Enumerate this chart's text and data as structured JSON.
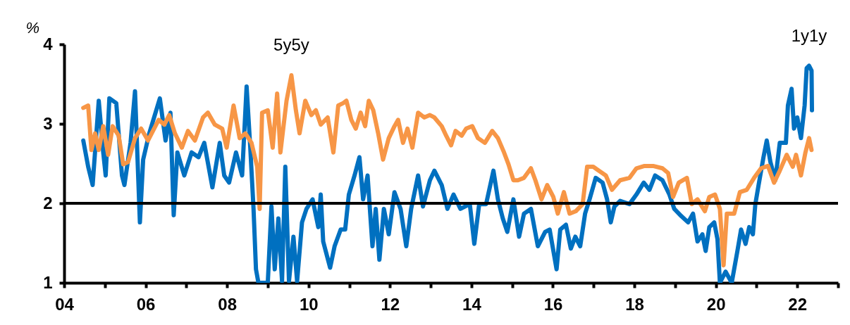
{
  "chart_data": {
    "type": "line",
    "ylabel": "%",
    "xlim": [
      2004,
      2023
    ],
    "ylim": [
      1,
      4
    ],
    "xticks": [
      {
        "value": 2004,
        "label": "04"
      },
      {
        "value": 2005,
        "label": null
      },
      {
        "value": 2006,
        "label": "06"
      },
      {
        "value": 2007,
        "label": null
      },
      {
        "value": 2008,
        "label": "08"
      },
      {
        "value": 2009,
        "label": null
      },
      {
        "value": 2010,
        "label": "10"
      },
      {
        "value": 2011,
        "label": null
      },
      {
        "value": 2012,
        "label": "12"
      },
      {
        "value": 2013,
        "label": null
      },
      {
        "value": 2014,
        "label": "14"
      },
      {
        "value": 2015,
        "label": null
      },
      {
        "value": 2016,
        "label": "16"
      },
      {
        "value": 2017,
        "label": null
      },
      {
        "value": 2018,
        "label": "18"
      },
      {
        "value": 2019,
        "label": null
      },
      {
        "value": 2020,
        "label": "20"
      },
      {
        "value": 2021,
        "label": null
      },
      {
        "value": 2022,
        "label": "22"
      },
      {
        "value": 2023,
        "label": null
      }
    ],
    "yticks": [
      1,
      2,
      3,
      4
    ],
    "grid": false,
    "line_style": "solid",
    "marker": "none",
    "ref_lines": [
      {
        "axis": "y",
        "value": 2,
        "color": "#000000",
        "line_style": "solid"
      }
    ],
    "series": [
      {
        "name": "1y1y",
        "color": "#0070c0",
        "x": [
          2004.47,
          2004.59,
          2004.7,
          2004.85,
          2004.96,
          2005.02,
          2005.11,
          2005.28,
          2005.42,
          2005.48,
          2005.63,
          2005.74,
          2005.86,
          2005.94,
          2006.09,
          2006.35,
          2006.49,
          2006.61,
          2006.69,
          2006.78,
          2006.95,
          2007.13,
          2007.3,
          2007.44,
          2007.64,
          2007.82,
          2007.93,
          2008.05,
          2008.22,
          2008.37,
          2008.48,
          2008.57,
          2008.65,
          2008.71,
          2008.77,
          2009,
          2009.09,
          2009.17,
          2009.26,
          2009.35,
          2009.43,
          2009.52,
          2009.63,
          2009.72,
          2009.84,
          2009.95,
          2010.1,
          2010.24,
          2010.3,
          2010.36,
          2010.53,
          2010.64,
          2010.79,
          2010.9,
          2010.99,
          2011.13,
          2011.25,
          2011.34,
          2011.45,
          2011.57,
          2011.65,
          2011.74,
          2011.85,
          2011.97,
          2012.11,
          2012.26,
          2012.4,
          2012.52,
          2012.69,
          2012.81,
          2012.98,
          2013.09,
          2013.27,
          2013.41,
          2013.56,
          2013.73,
          2013.96,
          2014.07,
          2014.19,
          2014.36,
          2014.54,
          2014.65,
          2014.77,
          2014.88,
          2015.03,
          2015.17,
          2015.29,
          2015.46,
          2015.63,
          2015.81,
          2015.92,
          2016.09,
          2016.18,
          2016.32,
          2016.44,
          2016.55,
          2016.67,
          2016.79,
          2016.9,
          2017.05,
          2017.22,
          2017.33,
          2017.42,
          2017.51,
          2017.65,
          2017.88,
          2018.05,
          2018.23,
          2018.37,
          2018.51,
          2018.69,
          2018.86,
          2018.98,
          2019.15,
          2019.32,
          2019.44,
          2019.55,
          2019.67,
          2019.75,
          2019.84,
          2019.96,
          2020.04,
          2020.1,
          2020.24,
          2020.39,
          2020.53,
          2020.62,
          2020.73,
          2020.82,
          2020.91,
          2020.97,
          2021.05,
          2021.17,
          2021.25,
          2021.34,
          2021.46,
          2021.57,
          2021.72,
          2021.77,
          2021.86,
          2021.92,
          2022,
          2022.09,
          2022.18,
          2022.23,
          2022.29,
          2022.35,
          2022.36
        ],
        "values": [
          2.79,
          2.46,
          2.23,
          3.29,
          2.64,
          2.35,
          3.32,
          3.26,
          2.35,
          2.23,
          2.76,
          3.41,
          1.76,
          2.55,
          2.88,
          3.32,
          2.79,
          3.14,
          1.85,
          2.64,
          2.35,
          2.64,
          2.58,
          2.76,
          2.2,
          2.76,
          2.35,
          2.26,
          2.64,
          2.35,
          3.47,
          2.7,
          1.93,
          1.17,
          1,
          1,
          1.96,
          1.17,
          1.81,
          1.02,
          2.46,
          1.02,
          1.58,
          1.02,
          1.76,
          1.93,
          2.05,
          1.7,
          2.11,
          1.52,
          1.19,
          1.46,
          1.67,
          1.67,
          2.11,
          2.35,
          2.58,
          2.05,
          2.35,
          1.46,
          1.93,
          1.29,
          1.93,
          1.61,
          2.14,
          1.93,
          1.46,
          1.93,
          2.35,
          1.96,
          2.29,
          2.41,
          2.23,
          1.93,
          2.11,
          1.93,
          1.99,
          1.49,
          1.99,
          1.99,
          2.41,
          2.05,
          1.81,
          1.64,
          2.05,
          1.58,
          1.87,
          1.93,
          1.46,
          1.64,
          1.67,
          1.17,
          1.67,
          1.73,
          1.43,
          1.58,
          1.46,
          1.87,
          2.05,
          2.32,
          2.26,
          2.05,
          1.76,
          1.96,
          2.03,
          1.99,
          2.11,
          2.26,
          2.17,
          2.35,
          2.29,
          2.11,
          1.93,
          1.84,
          1.76,
          1.87,
          1.52,
          1.61,
          1.4,
          1.7,
          1.76,
          1.55,
          1,
          1.14,
          1,
          1.4,
          1.67,
          1.49,
          1.7,
          1.61,
          1.99,
          2.23,
          2.58,
          2.79,
          2.52,
          2.29,
          2.76,
          2.76,
          3.23,
          3.44,
          2.94,
          3.08,
          2.82,
          3.23,
          3.7,
          3.73,
          3.67,
          3.17
        ]
      },
      {
        "name": "5y5y",
        "color": "#f79646",
        "x": [
          2004.47,
          2004.59,
          2004.67,
          2004.76,
          2004.85,
          2004.96,
          2005.08,
          2005.19,
          2005.34,
          2005.45,
          2005.57,
          2005.74,
          2005.89,
          2006.06,
          2006.32,
          2006.46,
          2006.58,
          2006.72,
          2006.89,
          2007.04,
          2007.21,
          2007.41,
          2007.53,
          2007.7,
          2007.88,
          2007.99,
          2008.16,
          2008.31,
          2008.45,
          2008.6,
          2008.74,
          2008.8,
          2008.86,
          2009,
          2009.12,
          2009.23,
          2009.31,
          2009.46,
          2009.58,
          2009.69,
          2009.78,
          2009.92,
          2010.07,
          2010.18,
          2010.3,
          2010.47,
          2010.61,
          2010.73,
          2010.85,
          2010.93,
          2011.05,
          2011.16,
          2011.28,
          2011.39,
          2011.48,
          2011.59,
          2011.71,
          2011.83,
          2011.97,
          2012.11,
          2012.2,
          2012.32,
          2012.43,
          2012.55,
          2012.69,
          2012.84,
          2012.98,
          2013.09,
          2013.27,
          2013.38,
          2013.5,
          2013.61,
          2013.76,
          2013.87,
          2014.02,
          2014.16,
          2014.33,
          2014.51,
          2014.65,
          2014.8,
          2014.91,
          2015.03,
          2015.14,
          2015.29,
          2015.46,
          2015.57,
          2015.72,
          2015.86,
          2016.01,
          2016.12,
          2016.27,
          2016.41,
          2016.56,
          2016.73,
          2016.84,
          2016.99,
          2017.13,
          2017.3,
          2017.45,
          2017.65,
          2017.88,
          2018.05,
          2018.25,
          2018.46,
          2018.69,
          2018.83,
          2018.95,
          2019.09,
          2019.29,
          2019.41,
          2019.55,
          2019.73,
          2019.84,
          2019.98,
          2020.1,
          2020.19,
          2020.27,
          2020.45,
          2020.59,
          2020.76,
          2020.94,
          2021.11,
          2021.28,
          2021.43,
          2021.57,
          2021.74,
          2021.89,
          2021.97,
          2022.09,
          2022.2,
          2022.29,
          2022.35
        ],
        "values": [
          3.2,
          3.23,
          2.67,
          2.88,
          2.67,
          2.97,
          2.61,
          2.97,
          2.85,
          2.49,
          2.52,
          2.82,
          2.94,
          2.79,
          3.05,
          2.99,
          3.11,
          2.88,
          2.7,
          2.91,
          2.79,
          3.08,
          3.14,
          2.99,
          2.94,
          2.7,
          3.23,
          2.82,
          2.88,
          2.76,
          2.46,
          1.93,
          3.14,
          3.17,
          2.7,
          3.38,
          2.64,
          3.29,
          3.61,
          3.17,
          2.88,
          3.29,
          3.11,
          3.17,
          2.99,
          3.08,
          2.64,
          3.23,
          3.26,
          3.29,
          3.05,
          2.94,
          3.14,
          2.97,
          3.29,
          3.17,
          2.88,
          2.55,
          2.82,
          2.97,
          3.05,
          2.76,
          2.94,
          2.7,
          3.14,
          3.08,
          3.11,
          3.08,
          2.97,
          2.85,
          2.73,
          2.91,
          2.85,
          2.94,
          2.97,
          2.82,
          2.76,
          2.91,
          2.82,
          2.64,
          2.49,
          2.29,
          2.29,
          2.32,
          2.44,
          2.29,
          2.05,
          2.23,
          2.08,
          1.87,
          2.14,
          1.87,
          1.9,
          1.99,
          2.46,
          2.46,
          2.41,
          2.35,
          2.17,
          2.29,
          2.32,
          2.44,
          2.47,
          2.47,
          2.44,
          2.38,
          2.08,
          2.26,
          2.32,
          1.99,
          2.05,
          1.9,
          2.08,
          2.11,
          1.93,
          1.22,
          1.87,
          1.87,
          2.14,
          2.17,
          2.32,
          2.44,
          2.47,
          2.26,
          2.41,
          2.61,
          2.46,
          2.61,
          2.35,
          2.64,
          2.82,
          2.67
        ]
      }
    ]
  }
}
